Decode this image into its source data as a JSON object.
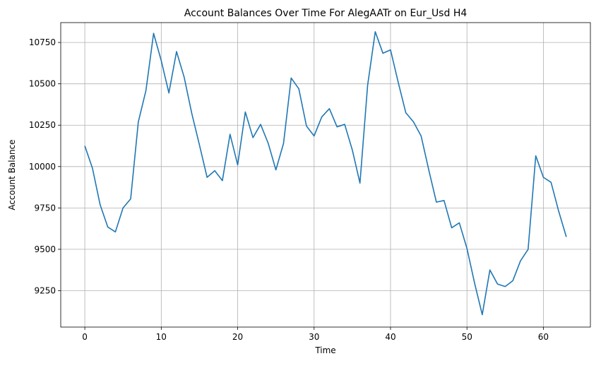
{
  "chart_data": {
    "type": "line",
    "title": "Account Balances Over Time For AlegAATr on Eur_Usd H4",
    "xlabel": "Time",
    "ylabel": "Account Balance",
    "xlim": [
      -3.15,
      66.15
    ],
    "ylim": [
      9030,
      10870
    ],
    "x_ticks": [
      0,
      10,
      20,
      30,
      40,
      50,
      60
    ],
    "y_ticks": [
      9250,
      9500,
      9750,
      10000,
      10250,
      10500,
      10750
    ],
    "grid": true,
    "legend": "none",
    "series": [
      {
        "color": "#1f77b4",
        "x": [
          0,
          1,
          2,
          3,
          4,
          5,
          6,
          7,
          8,
          9,
          10,
          11,
          12,
          13,
          14,
          15,
          16,
          17,
          18,
          19,
          20,
          21,
          22,
          23,
          24,
          25,
          26,
          27,
          28,
          29,
          30,
          31,
          32,
          33,
          34,
          35,
          36,
          37,
          38,
          39,
          40,
          41,
          42,
          43,
          44,
          45,
          46,
          47,
          48,
          49,
          50,
          51,
          52,
          53,
          54,
          55,
          56,
          57,
          58,
          59,
          60,
          61,
          62,
          63
        ],
        "values": [
          10125,
          9990,
          9770,
          9635,
          9605,
          9750,
          9805,
          10270,
          10460,
          10805,
          10640,
          10445,
          10695,
          10540,
          10320,
          10130,
          9935,
          9975,
          9915,
          10195,
          10010,
          10330,
          10175,
          10255,
          10140,
          9980,
          10140,
          10535,
          10470,
          10245,
          10185,
          10300,
          10350,
          10240,
          10255,
          10100,
          9900,
          10490,
          10815,
          10685,
          10705,
          10510,
          10325,
          10270,
          10185,
          9980,
          9785,
          9795,
          9630,
          9660,
          9505,
          9295,
          9105,
          9375,
          9290,
          9275,
          9310,
          9430,
          9500,
          10065,
          9935,
          9905,
          9730,
          9575
        ]
      }
    ]
  }
}
